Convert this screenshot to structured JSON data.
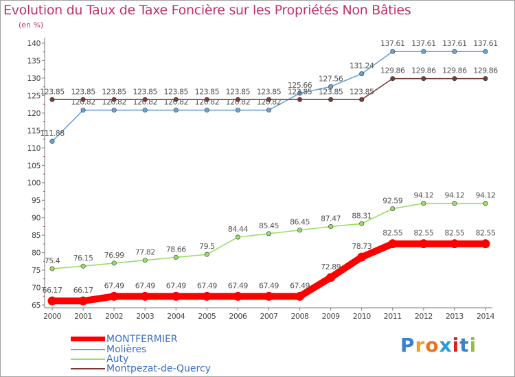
{
  "title": "Evolution du Taux de Taxe Foncière sur les Propriétés Non Bâties",
  "unit": "(en %)",
  "chart_data": {
    "type": "line",
    "title": "Evolution du Taux de Taxe Foncière sur les Propriétés Non Bâties",
    "ylabel": "(en %)",
    "xlabel": "",
    "ylim": [
      65,
      140
    ],
    "yticks": [
      65,
      70,
      75,
      80,
      85,
      90,
      95,
      100,
      105,
      110,
      115,
      120,
      125,
      130,
      135,
      140
    ],
    "x": [
      "2000",
      "2001",
      "2002",
      "2003",
      "2004",
      "2005",
      "2006",
      "2007",
      "2008",
      "2009",
      "2010",
      "2011",
      "2012",
      "2013",
      "2014"
    ],
    "grid": false,
    "legend_position": "bottom",
    "series": [
      {
        "name": "MONTFERMIER",
        "color": "#ff0000",
        "values": [
          66.17,
          66.17,
          67.49,
          67.49,
          67.49,
          67.49,
          67.49,
          67.49,
          67.49,
          72.89,
          78.73,
          82.55,
          82.55,
          82.55,
          82.55
        ]
      },
      {
        "name": "Molières",
        "color": "#6aa3d8",
        "values": [
          111.88,
          120.82,
          120.82,
          120.82,
          120.82,
          120.82,
          120.82,
          120.82,
          125.66,
          127.56,
          131.24,
          137.61,
          137.61,
          137.61,
          137.61
        ]
      },
      {
        "name": "Auty",
        "color": "#99dd66",
        "values": [
          75.4,
          76.15,
          76.99,
          77.82,
          78.66,
          79.5,
          84.44,
          85.45,
          86.45,
          87.47,
          88.31,
          92.59,
          94.12,
          94.12,
          94.12
        ]
      },
      {
        "name": "Montpezat-de-Quercy",
        "color": "#7a3a3a",
        "values": [
          123.85,
          123.85,
          123.85,
          123.85,
          123.85,
          123.85,
          123.85,
          123.85,
          123.85,
          123.85,
          123.85,
          129.86,
          129.86,
          129.86,
          129.86
        ]
      }
    ]
  },
  "logo": {
    "letters": [
      "P",
      "r",
      "o",
      "x",
      "i",
      "t",
      "i"
    ],
    "colors": [
      "#3a7fd0",
      "#f0a020",
      "#f07020",
      "#2a9ad8",
      "#e02020",
      "#3a7fd0",
      "#90c040"
    ]
  }
}
